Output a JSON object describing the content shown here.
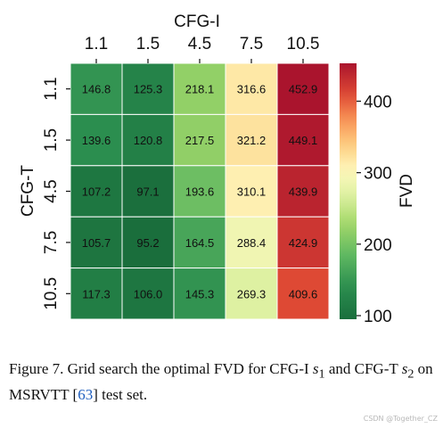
{
  "chart_data": {
    "type": "heatmap",
    "xlabel": "CFG-I",
    "ylabel": "CFG-T",
    "x_categories": [
      "1.1",
      "1.5",
      "4.5",
      "7.5",
      "10.5"
    ],
    "y_categories": [
      "1.1",
      "1.5",
      "4.5",
      "7.5",
      "10.5"
    ],
    "values": [
      [
        146.8,
        125.3,
        218.1,
        316.6,
        452.9
      ],
      [
        139.6,
        120.8,
        217.5,
        321.2,
        449.1
      ],
      [
        107.2,
        97.1,
        193.6,
        310.1,
        439.9
      ],
      [
        105.7,
        95.2,
        164.5,
        288.4,
        424.9
      ],
      [
        117.3,
        106.0,
        145.3,
        269.3,
        409.6
      ]
    ],
    "colorbar": {
      "label": "FVD",
      "ticks": [
        "100",
        "200",
        "300",
        "400"
      ],
      "range": [
        95,
        453
      ],
      "colormap": "RdYlGn_r"
    }
  },
  "caption": {
    "prefix": "Figure 7. Grid search the optimal FVD for CFG-I ",
    "s1_var": "s",
    "s1_sub": "1",
    "middle": " and CFG-T ",
    "s2_var": "s",
    "s2_sub": "2",
    "after": " on MSRVTT [",
    "ref": "63",
    "suffix": "] test set."
  },
  "watermark": "CSDN @Together_CZ"
}
